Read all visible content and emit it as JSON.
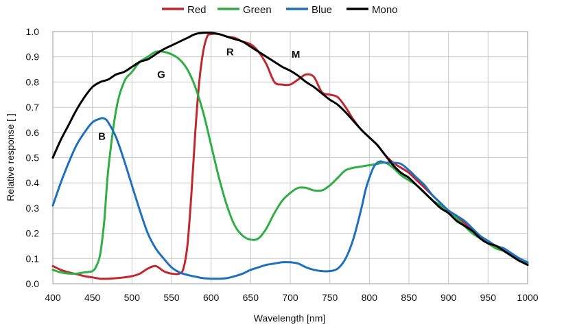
{
  "chart_data": {
    "type": "line",
    "title": "",
    "xlabel": "Wavelength [nm]",
    "ylabel": "Relative response [ ]",
    "xlim": [
      400,
      1000
    ],
    "ylim": [
      0.0,
      1.0
    ],
    "xticks": [
      "400",
      "450",
      "500",
      "550",
      "600",
      "650",
      "700",
      "750",
      "800",
      "850",
      "900",
      "950",
      "1000"
    ],
    "yticks": [
      "0.0",
      "0.1",
      "0.2",
      "0.3",
      "0.4",
      "0.5",
      "0.6",
      "0.7",
      "0.8",
      "0.9",
      "1.0"
    ],
    "grid": true,
    "legend_position": "top-center",
    "series": [
      {
        "name": "Red",
        "color": "#c0282d",
        "x": [
          400,
          410,
          420,
          430,
          440,
          450,
          460,
          470,
          480,
          490,
          500,
          510,
          520,
          530,
          540,
          550,
          560,
          565,
          570,
          575,
          580,
          585,
          590,
          595,
          600,
          610,
          620,
          630,
          640,
          650,
          660,
          670,
          680,
          690,
          700,
          710,
          720,
          730,
          740,
          750,
          760,
          770,
          780,
          790,
          800,
          810,
          820,
          830,
          840,
          850,
          860,
          870,
          880,
          890,
          900,
          910,
          920,
          930,
          940,
          950,
          960,
          970,
          980,
          990,
          1000
        ],
        "y": [
          0.07,
          0.055,
          0.045,
          0.038,
          0.03,
          0.025,
          0.02,
          0.02,
          0.022,
          0.025,
          0.03,
          0.04,
          0.06,
          0.07,
          0.05,
          0.04,
          0.04,
          0.06,
          0.15,
          0.35,
          0.6,
          0.8,
          0.92,
          0.98,
          0.99,
          0.99,
          0.98,
          0.975,
          0.96,
          0.95,
          0.92,
          0.87,
          0.8,
          0.79,
          0.79,
          0.81,
          0.83,
          0.82,
          0.76,
          0.75,
          0.74,
          0.7,
          0.65,
          0.61,
          0.58,
          0.55,
          0.51,
          0.48,
          0.46,
          0.44,
          0.41,
          0.38,
          0.35,
          0.32,
          0.29,
          0.27,
          0.24,
          0.21,
          0.18,
          0.16,
          0.15,
          0.13,
          0.11,
          0.09,
          0.08
        ]
      },
      {
        "name": "Green",
        "color": "#2eae45",
        "x": [
          400,
          410,
          420,
          430,
          440,
          450,
          455,
          460,
          465,
          470,
          480,
          490,
          500,
          510,
          520,
          530,
          540,
          550,
          560,
          570,
          580,
          590,
          600,
          610,
          620,
          630,
          640,
          650,
          660,
          670,
          680,
          690,
          700,
          710,
          720,
          730,
          740,
          750,
          760,
          770,
          780,
          790,
          800,
          810,
          820,
          830,
          840,
          850,
          860,
          870,
          880,
          890,
          900,
          910,
          920,
          930,
          940,
          950,
          960,
          970,
          980,
          990,
          1000
        ],
        "y": [
          0.055,
          0.045,
          0.04,
          0.04,
          0.045,
          0.05,
          0.07,
          0.12,
          0.25,
          0.45,
          0.69,
          0.8,
          0.84,
          0.88,
          0.9,
          0.92,
          0.92,
          0.91,
          0.89,
          0.85,
          0.78,
          0.68,
          0.55,
          0.42,
          0.31,
          0.23,
          0.19,
          0.175,
          0.18,
          0.22,
          0.28,
          0.33,
          0.36,
          0.38,
          0.38,
          0.37,
          0.37,
          0.39,
          0.42,
          0.45,
          0.46,
          0.465,
          0.47,
          0.475,
          0.48,
          0.46,
          0.43,
          0.41,
          0.39,
          0.36,
          0.33,
          0.31,
          0.28,
          0.26,
          0.23,
          0.2,
          0.18,
          0.16,
          0.14,
          0.13,
          0.11,
          0.09,
          0.08
        ]
      },
      {
        "name": "Blue",
        "color": "#1f6fbf",
        "x": [
          400,
          410,
          420,
          430,
          440,
          450,
          460,
          465,
          470,
          480,
          490,
          500,
          510,
          520,
          530,
          540,
          550,
          560,
          570,
          580,
          590,
          600,
          610,
          620,
          630,
          640,
          650,
          660,
          670,
          680,
          690,
          700,
          710,
          720,
          730,
          740,
          750,
          760,
          770,
          780,
          790,
          795,
          800,
          805,
          810,
          815,
          820,
          830,
          840,
          850,
          860,
          870,
          880,
          890,
          900,
          910,
          920,
          930,
          940,
          950,
          960,
          970,
          980,
          990,
          1000
        ],
        "y": [
          0.31,
          0.4,
          0.48,
          0.55,
          0.6,
          0.64,
          0.655,
          0.655,
          0.64,
          0.58,
          0.49,
          0.39,
          0.29,
          0.2,
          0.14,
          0.1,
          0.065,
          0.045,
          0.035,
          0.028,
          0.022,
          0.02,
          0.02,
          0.022,
          0.03,
          0.04,
          0.055,
          0.065,
          0.075,
          0.08,
          0.085,
          0.085,
          0.08,
          0.065,
          0.055,
          0.05,
          0.05,
          0.06,
          0.1,
          0.18,
          0.3,
          0.37,
          0.42,
          0.46,
          0.48,
          0.485,
          0.48,
          0.48,
          0.475,
          0.45,
          0.42,
          0.39,
          0.35,
          0.32,
          0.29,
          0.27,
          0.25,
          0.22,
          0.19,
          0.17,
          0.15,
          0.14,
          0.12,
          0.1,
          0.085
        ]
      },
      {
        "name": "Mono",
        "color": "#000000",
        "x": [
          400,
          410,
          420,
          430,
          440,
          450,
          460,
          470,
          480,
          490,
          500,
          510,
          520,
          530,
          540,
          550,
          560,
          570,
          580,
          590,
          600,
          610,
          620,
          630,
          640,
          650,
          660,
          670,
          680,
          690,
          700,
          710,
          720,
          730,
          740,
          750,
          760,
          770,
          780,
          790,
          800,
          810,
          820,
          830,
          840,
          850,
          860,
          870,
          880,
          890,
          900,
          910,
          920,
          930,
          940,
          950,
          960,
          970,
          980,
          990,
          1000
        ],
        "y": [
          0.5,
          0.57,
          0.63,
          0.69,
          0.74,
          0.78,
          0.8,
          0.81,
          0.83,
          0.84,
          0.86,
          0.88,
          0.89,
          0.91,
          0.93,
          0.945,
          0.96,
          0.975,
          0.99,
          0.995,
          0.995,
          0.99,
          0.98,
          0.97,
          0.96,
          0.94,
          0.92,
          0.9,
          0.88,
          0.86,
          0.845,
          0.825,
          0.8,
          0.78,
          0.755,
          0.73,
          0.71,
          0.68,
          0.645,
          0.61,
          0.58,
          0.55,
          0.51,
          0.47,
          0.44,
          0.42,
          0.39,
          0.36,
          0.33,
          0.3,
          0.28,
          0.25,
          0.23,
          0.21,
          0.18,
          0.16,
          0.15,
          0.13,
          0.11,
          0.09,
          0.075
        ]
      }
    ],
    "annotations": [
      {
        "text": "B",
        "x": 462,
        "y": 0.585
      },
      {
        "text": "G",
        "x": 537,
        "y": 0.83
      },
      {
        "text": "R",
        "x": 624,
        "y": 0.92
      },
      {
        "text": "M",
        "x": 707,
        "y": 0.91
      }
    ]
  }
}
